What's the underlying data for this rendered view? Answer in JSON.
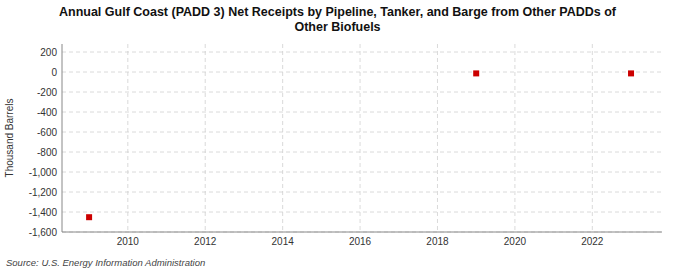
{
  "chart_data": {
    "type": "scatter",
    "title": "Annual Gulf Coast (PADD 3) Net Receipts by Pipeline, Tanker, and Barge from Other PADDs of\nOther Biofuels",
    "y_label": "Thousand Barrels",
    "annotations": [
      "Source: U.S. Energy Information Administration"
    ],
    "x": [
      2009,
      2019,
      2023
    ],
    "values": [
      -1452,
      -14,
      -14
    ],
    "color": "#cc0000",
    "marker": "square",
    "xlim": [
      2008.3,
      2023.8
    ],
    "ylim": [
      -1600,
      280
    ],
    "xticks": [
      2010,
      2012,
      2014,
      2016,
      2018,
      2020,
      2022
    ],
    "yticks": [
      200,
      0,
      -200,
      -400,
      -600,
      -800,
      {
        "value": -1000,
        "label": "-1,000"
      },
      {
        "value": -1200,
        "label": "-1,200"
      },
      {
        "value": -1400,
        "label": "-1,400"
      },
      {
        "value": -1600,
        "label": "-1,600"
      }
    ],
    "grid": true
  }
}
